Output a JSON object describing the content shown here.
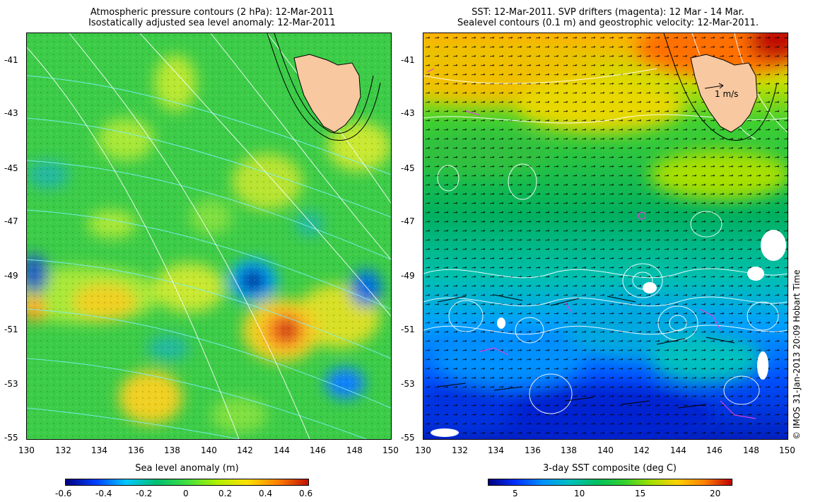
{
  "left_panel": {
    "title_line1": "Atmospheric pressure contours (2 hPa): 12-Mar-2011",
    "title_line2": "Isostatically adjusted sea level anomaly: 12-Mar-2011",
    "x_ticks": [
      "130",
      "132",
      "134",
      "136",
      "138",
      "140",
      "142",
      "144",
      "146",
      "148",
      "150"
    ],
    "y_ticks": [
      "-41",
      "-43",
      "-45",
      "-47",
      "-49",
      "-51",
      "-53",
      "-55"
    ],
    "colorbar_title": "Sea level anomaly (m)",
    "colorbar_ticks": [
      "-0.6",
      "-0.4",
      "-0.2",
      "0",
      "0.2",
      "0.4",
      "0.6"
    ],
    "colorbar_range": [
      -0.6,
      0.6
    ]
  },
  "right_panel": {
    "title_line1": "SST: 12-Mar-2011. SVP drifters (magenta): 12 Mar - 14 Mar.",
    "title_line2": "Sealevel contours (0.1 m) and geostrophic velocity: 12-Mar-2011.",
    "x_ticks": [
      "130",
      "132",
      "134",
      "136",
      "138",
      "140",
      "142",
      "144",
      "146",
      "148",
      "150"
    ],
    "y_ticks": [
      "-41",
      "-43",
      "-45",
      "-47",
      "-49",
      "-51",
      "-53",
      "-55"
    ],
    "scale_label": "1 m/s",
    "colorbar_title": "3-day SST composite (deg C)",
    "colorbar_ticks": [
      "5",
      "10",
      "15",
      "20"
    ],
    "colorbar_range": [
      2,
      22
    ]
  },
  "map_extent": {
    "lon": [
      130,
      150
    ],
    "lat": [
      -55,
      -40
    ]
  },
  "copyright": "© IMOS 31-Jan-2013 20:09 Hobart Time",
  "colors": {
    "land": "#f8c8a0",
    "sla_scale": [
      "#00007f",
      "#0040ff",
      "#00c8ff",
      "#00c070",
      "#40e040",
      "#b0f000",
      "#ffe000",
      "#ff8000",
      "#c01000"
    ],
    "sst_scale": [
      "#000080",
      "#0030ff",
      "#0090ff",
      "#00c0c0",
      "#00c060",
      "#30d030",
      "#a0e000",
      "#ffd000",
      "#ff8000",
      "#c00000"
    ],
    "drifters": "#e040e0"
  }
}
